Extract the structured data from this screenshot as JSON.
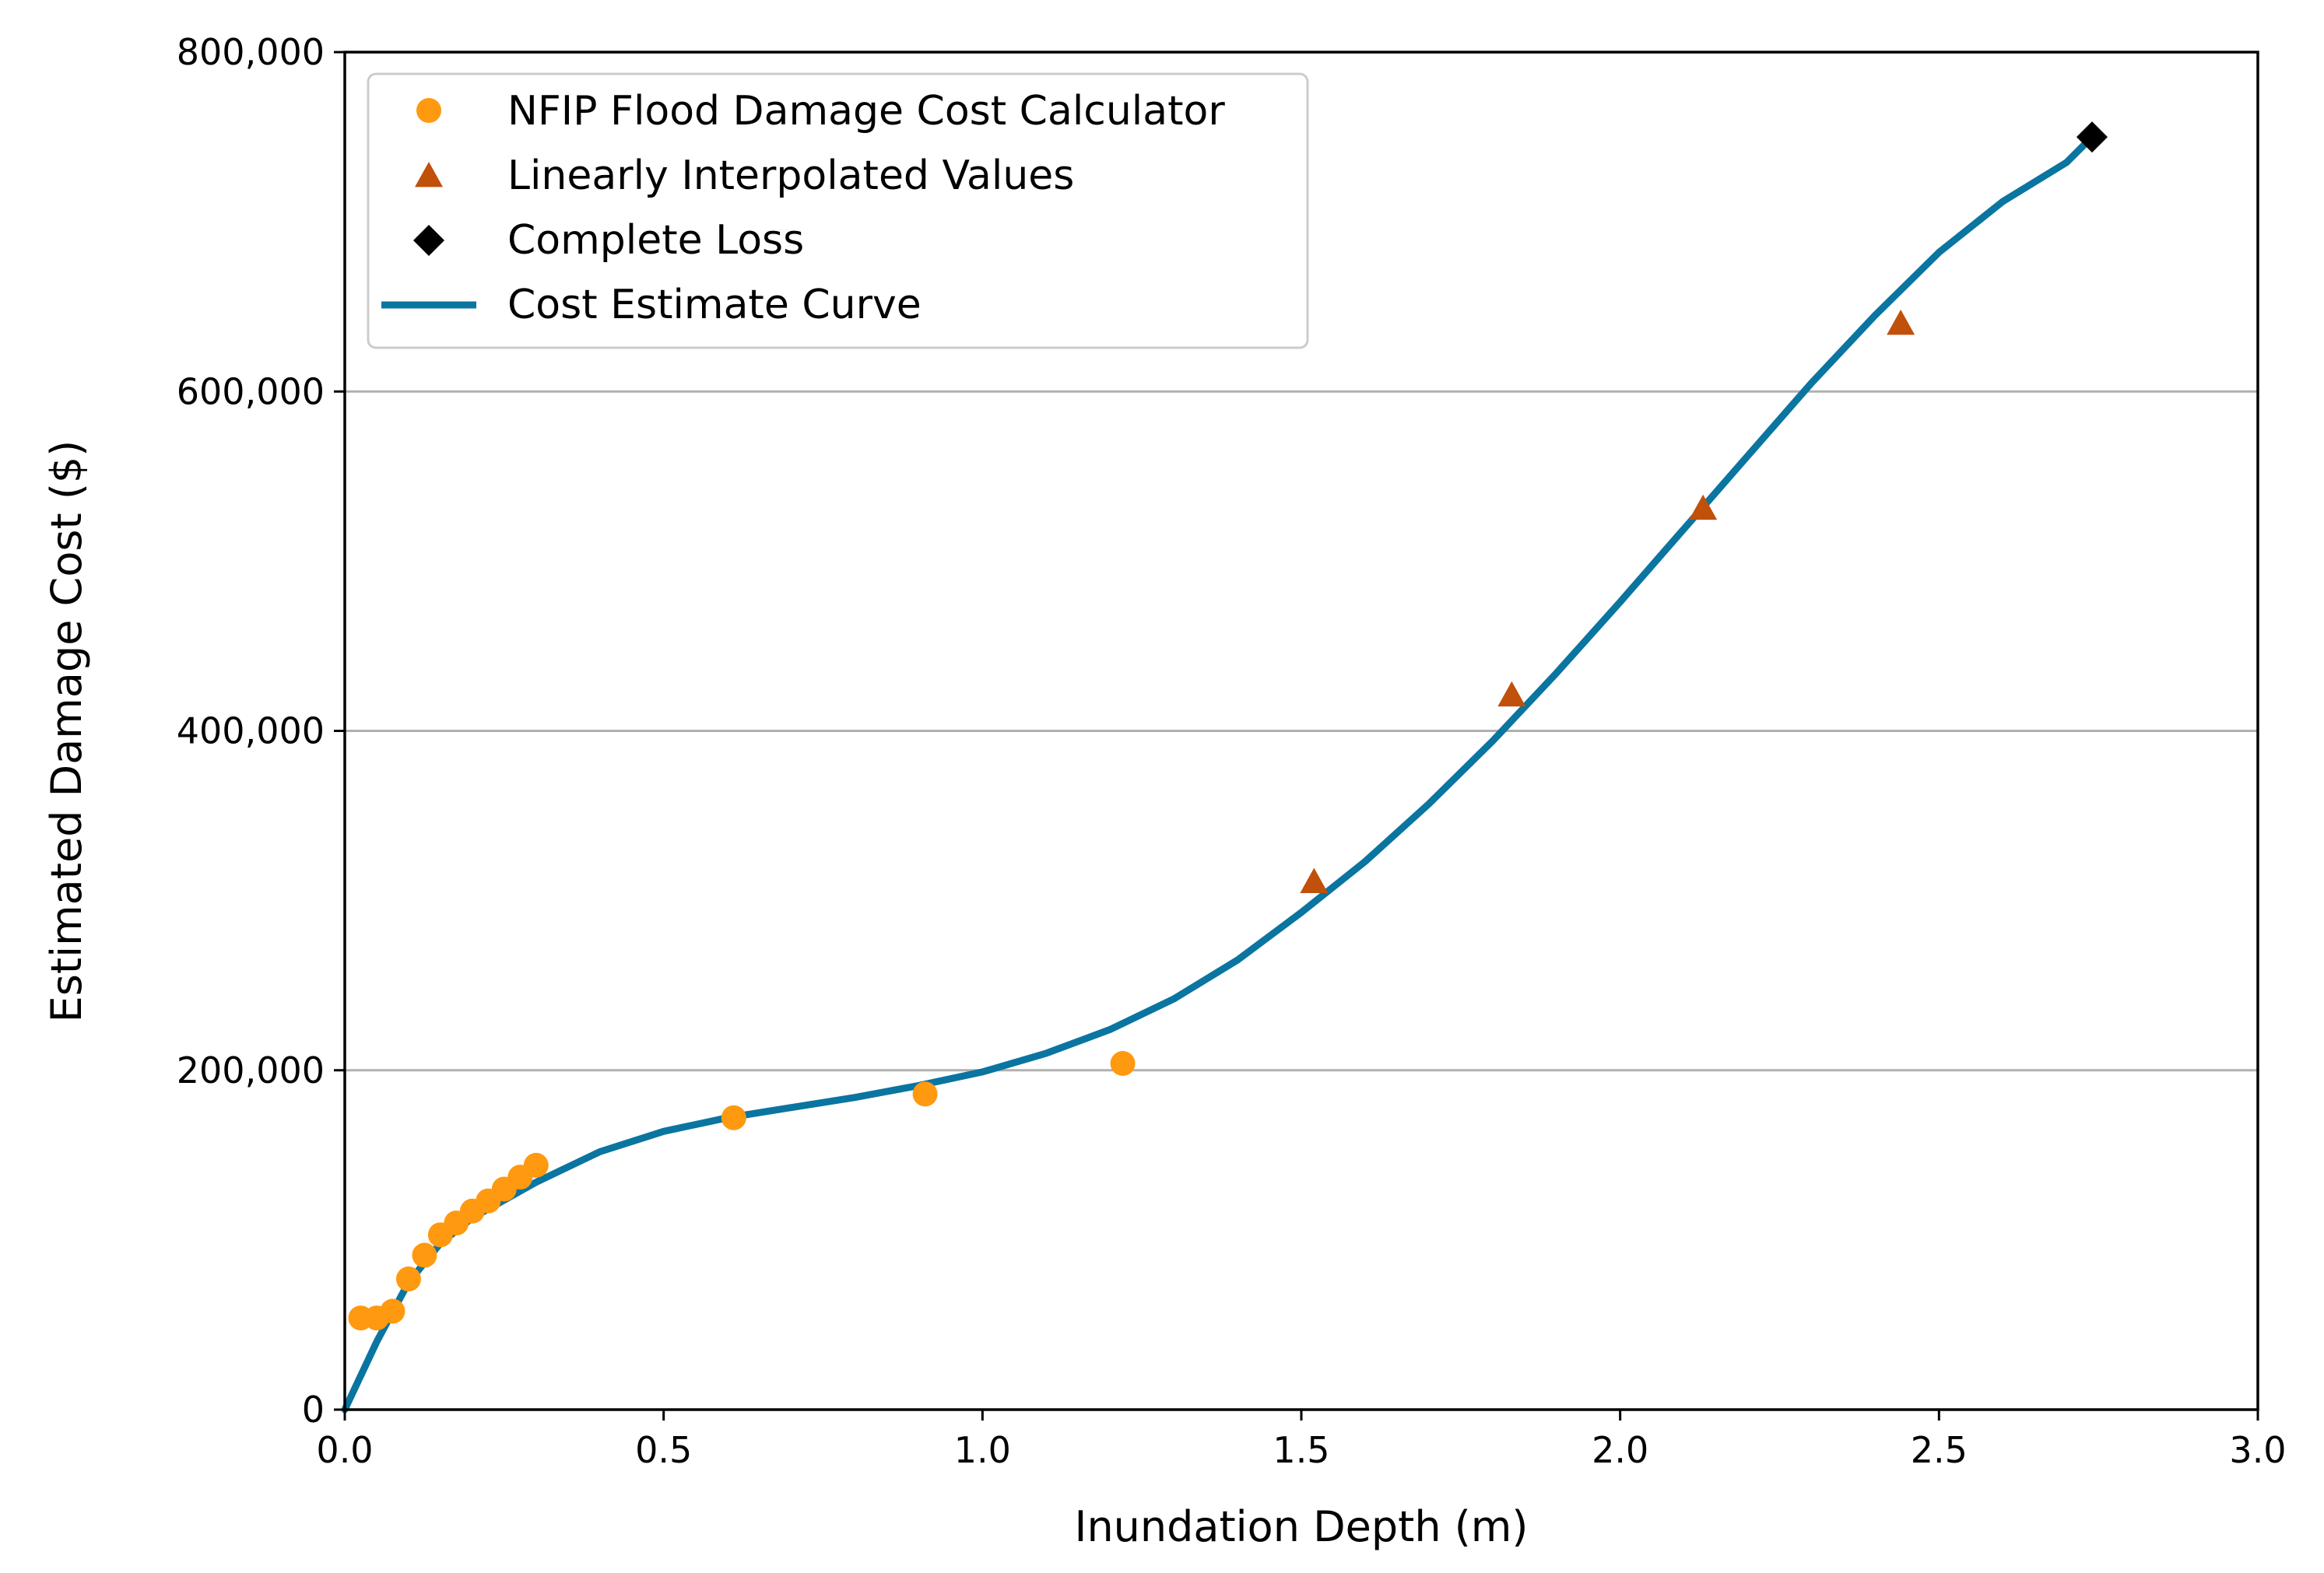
{
  "chart_data": {
    "type": "scatter",
    "title": "",
    "xlabel": "Inundation Depth (m)",
    "ylabel": "Estimated Damage Cost ($)",
    "xlim": [
      0.0,
      3.0
    ],
    "ylim": [
      0,
      800000
    ],
    "xticks": [
      0.0,
      0.5,
      1.0,
      1.5,
      2.0,
      2.5,
      3.0
    ],
    "xtick_labels": [
      "0.0",
      "0.5",
      "1.0",
      "1.5",
      "2.0",
      "2.5",
      "3.0"
    ],
    "yticks": [
      0,
      200000,
      400000,
      600000,
      800000
    ],
    "ytick_labels": [
      "0",
      "200,000",
      "400,000",
      "600,000",
      "800,000"
    ],
    "grid": "horizontal",
    "legend_position": "top-left",
    "colors": {
      "nfip": "#FF9910",
      "interp": "#C0500A",
      "complete": "#000000",
      "curve": "#0A75A0",
      "grid": "#B0B0B0"
    },
    "series": [
      {
        "name": "NFIP Flood Damage Cost Calculator",
        "kind": "scatter",
        "marker": "circle",
        "points": [
          [
            0.025,
            54000
          ],
          [
            0.05,
            54000
          ],
          [
            0.075,
            58000
          ],
          [
            0.1,
            77000
          ],
          [
            0.125,
            91000
          ],
          [
            0.15,
            103000
          ],
          [
            0.175,
            110000
          ],
          [
            0.2,
            117000
          ],
          [
            0.225,
            123000
          ],
          [
            0.25,
            130000
          ],
          [
            0.275,
            137000
          ],
          [
            0.3,
            144000
          ],
          [
            0.61,
            172000
          ],
          [
            0.91,
            186000
          ],
          [
            1.22,
            204000
          ]
        ]
      },
      {
        "name": "Linearly Interpolated Values",
        "kind": "scatter",
        "marker": "triangle",
        "points": [
          [
            1.52,
            311000
          ],
          [
            1.83,
            421000
          ],
          [
            2.13,
            531000
          ],
          [
            2.44,
            640000
          ]
        ]
      },
      {
        "name": "Complete Loss",
        "kind": "scatter",
        "marker": "diamond",
        "points": [
          [
            2.74,
            750000
          ]
        ]
      },
      {
        "name": "Cost Estimate Curve",
        "kind": "line",
        "points": [
          [
            0.0,
            0
          ],
          [
            0.05,
            40000
          ],
          [
            0.1,
            75000
          ],
          [
            0.15,
            98000
          ],
          [
            0.2,
            113000
          ],
          [
            0.3,
            134000
          ],
          [
            0.4,
            152000
          ],
          [
            0.5,
            164000
          ],
          [
            0.6,
            172000
          ],
          [
            0.7,
            178000
          ],
          [
            0.8,
            184000
          ],
          [
            0.9,
            191000
          ],
          [
            1.0,
            199000
          ],
          [
            1.1,
            210000
          ],
          [
            1.2,
            224000
          ],
          [
            1.3,
            242000
          ],
          [
            1.4,
            265000
          ],
          [
            1.5,
            293000
          ],
          [
            1.6,
            323000
          ],
          [
            1.7,
            357000
          ],
          [
            1.8,
            394000
          ],
          [
            1.9,
            434000
          ],
          [
            2.0,
            476000
          ],
          [
            2.1,
            519000
          ],
          [
            2.2,
            562000
          ],
          [
            2.3,
            605000
          ],
          [
            2.4,
            645000
          ],
          [
            2.5,
            682000
          ],
          [
            2.6,
            712000
          ],
          [
            2.7,
            735000
          ],
          [
            2.74,
            750000
          ]
        ]
      }
    ]
  }
}
